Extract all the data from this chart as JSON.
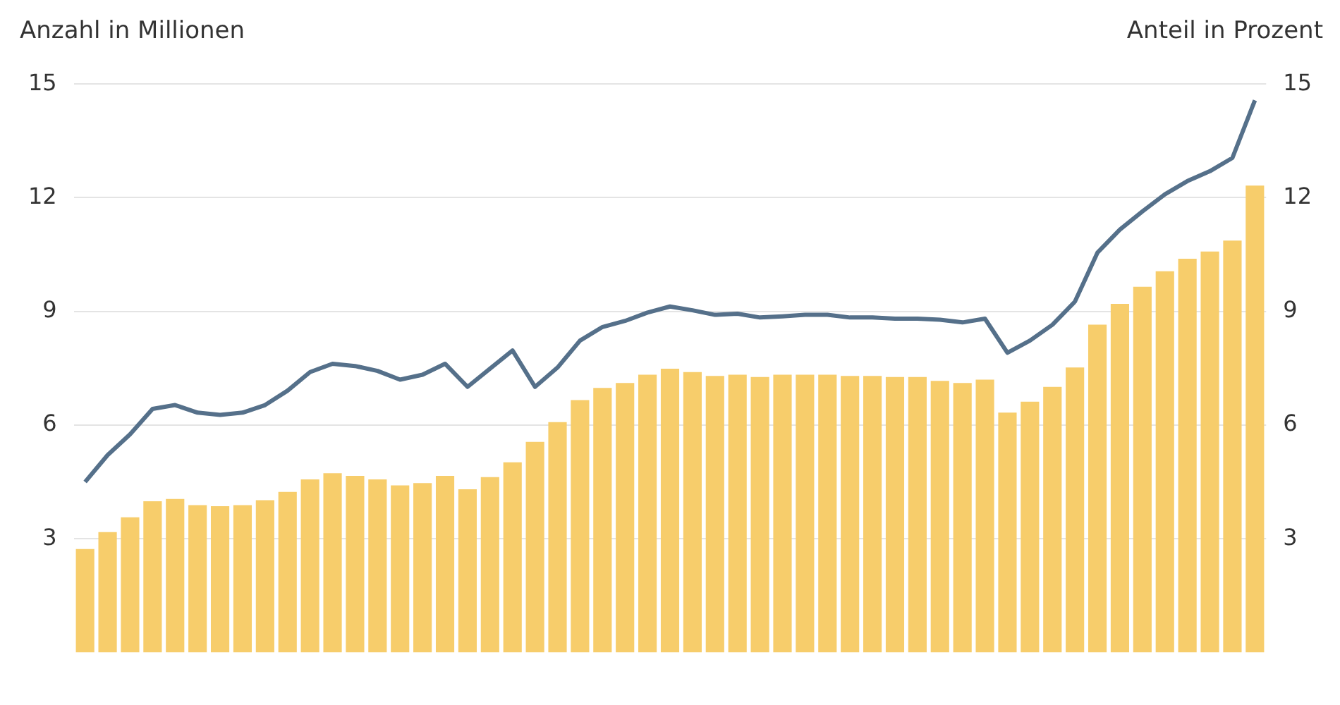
{
  "chart_data": {
    "type": "bar",
    "ylabel": "Anzahl in Millionen",
    "y2label": "Anteil in Prozent",
    "categories": [
      null,
      null,
      null,
      null,
      null,
      null,
      null,
      null,
      null,
      null,
      null,
      null,
      null,
      null,
      null,
      null,
      null,
      null,
      null,
      null,
      null,
      null,
      null,
      null,
      null,
      null,
      null,
      null,
      null,
      null,
      null,
      null,
      null,
      null,
      null,
      null,
      null,
      null,
      null,
      null,
      null,
      null,
      null,
      null,
      null,
      null,
      null,
      null,
      null,
      null,
      null,
      null,
      null
    ],
    "series": [
      {
        "color": "#f7cd6b",
        "values": [
          2.73,
          3.18,
          3.57,
          3.99,
          4.05,
          3.89,
          3.86,
          3.89,
          4.02,
          4.24,
          4.57,
          4.73,
          4.66,
          4.57,
          4.41,
          4.47,
          4.66,
          4.31,
          4.63,
          5.02,
          5.56,
          6.08,
          6.66,
          6.98,
          7.11,
          7.33,
          7.49,
          7.4,
          7.3,
          7.33,
          7.27,
          7.33,
          7.33,
          7.33,
          7.3,
          7.3,
          7.27,
          7.27,
          7.17,
          7.11,
          7.2,
          6.33,
          6.62,
          7.01,
          7.52,
          8.65,
          9.2,
          9.65,
          10.06,
          10.39,
          10.58,
          10.87,
          12.32
        ]
      },
      {
        "type": "line",
        "axis": "y2",
        "color": "#55708a",
        "values": [
          4.5,
          5.21,
          5.76,
          6.43,
          6.53,
          6.33,
          6.27,
          6.33,
          6.53,
          6.91,
          7.4,
          7.62,
          7.56,
          7.43,
          7.2,
          7.33,
          7.62,
          7.01,
          7.49,
          7.97,
          7.01,
          7.52,
          8.23,
          8.59,
          8.75,
          8.97,
          9.13,
          9.03,
          8.91,
          8.94,
          8.84,
          8.87,
          8.91,
          8.91,
          8.84,
          8.84,
          8.81,
          8.81,
          8.78,
          8.71,
          8.81,
          7.91,
          8.23,
          8.65,
          9.26,
          10.55,
          11.16,
          11.64,
          12.09,
          12.44,
          12.7,
          13.05,
          14.57
        ]
      }
    ],
    "ylim": [
      0,
      15
    ],
    "yticks": [
      3,
      6,
      9,
      12,
      15
    ],
    "y2lim": [
      0,
      15
    ],
    "y2ticks": [
      3,
      6,
      9,
      12,
      15
    ],
    "grid": "y",
    "legend": false,
    "marker": "none",
    "line_style": "solid"
  }
}
